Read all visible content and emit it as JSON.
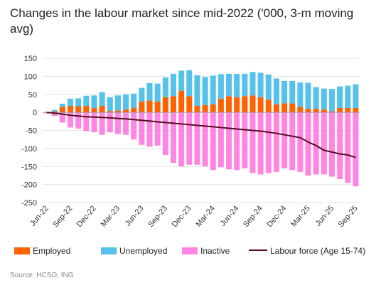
{
  "title": "Changes in the labour market since mid-2022 ('000, 3-m moving avg)",
  "source": "Source: HCSO, ING",
  "chart_data": {
    "type": "bar",
    "stacked": true,
    "ylim": [
      -250,
      150
    ],
    "yticks": [
      150,
      100,
      50,
      0,
      -50,
      -100,
      -150,
      -200,
      -250
    ],
    "categories": [
      "Jun-22",
      "Jul-22",
      "Aug-22",
      "Sep-22",
      "Oct-22",
      "Nov-22",
      "Dec-22",
      "Jan-23",
      "Feb-23",
      "Mar-23",
      "Apr-23",
      "May-23",
      "Jun-23",
      "Jul-23",
      "Aug-23",
      "Sep-23",
      "Oct-23",
      "Nov-23",
      "Dec-23",
      "Jan-24",
      "Feb-24",
      "Mar-24",
      "Apr-24",
      "May-24",
      "Jun-24",
      "Jul-24",
      "Aug-24",
      "Sep-24",
      "Oct-24",
      "Nov-24",
      "Dec-24",
      "Jan-25",
      "Feb-25",
      "Mar-25",
      "Apr-25",
      "May-25",
      "Jun-25",
      "Jul-25",
      "Aug-25",
      "Sep-25"
    ],
    "xtick_labels": [
      "Jun-22",
      "Sep-22",
      "Dec-22",
      "Mar-23",
      "Jun-23",
      "Sep-23",
      "Dec-23",
      "Mar-24",
      "Jun-24",
      "Sep-24",
      "Dec-24",
      "Mar-25",
      "Jun-25",
      "Sep-25"
    ],
    "series": [
      {
        "name": "Employed",
        "color": "#ff6200",
        "values": [
          0,
          3,
          15,
          18,
          17,
          18,
          12,
          18,
          4,
          5,
          8,
          12,
          30,
          33,
          30,
          42,
          45,
          60,
          45,
          18,
          20,
          22,
          38,
          45,
          42,
          45,
          47,
          42,
          35,
          22,
          25,
          25,
          15,
          10,
          10,
          8,
          3,
          12,
          12,
          12
        ]
      },
      {
        "name": "Unemployed",
        "color": "#56c2eb",
        "values": [
          0,
          4,
          9,
          20,
          22,
          28,
          35,
          38,
          38,
          42,
          42,
          40,
          38,
          48,
          50,
          55,
          62,
          56,
          72,
          85,
          78,
          80,
          68,
          62,
          65,
          62,
          65,
          68,
          70,
          72,
          62,
          62,
          68,
          72,
          60,
          58,
          62,
          60,
          62,
          66
        ]
      },
      {
        "name": "Inactive",
        "color": "#ff85e2",
        "values": [
          -3,
          -10,
          -28,
          -42,
          -45,
          -52,
          -55,
          -62,
          -55,
          -60,
          -62,
          -75,
          -90,
          -95,
          -92,
          -118,
          -140,
          -150,
          -145,
          -145,
          -150,
          -160,
          -152,
          -158,
          -160,
          -155,
          -168,
          -172,
          -168,
          -165,
          -155,
          -160,
          -165,
          -175,
          -172,
          -172,
          -178,
          -185,
          -195,
          -205
        ]
      },
      {
        "name": "Labour force (Age 15-74)",
        "type": "line",
        "color": "#5a0a22",
        "values": [
          0,
          -2,
          -5,
          -8,
          -10,
          -12,
          -13,
          -14,
          -15,
          -17,
          -18,
          -20,
          -22,
          -24,
          -26,
          -28,
          -30,
          -32,
          -34,
          -36,
          -38,
          -40,
          -42,
          -44,
          -46,
          -48,
          -50,
          -52,
          -55,
          -58,
          -62,
          -66,
          -70,
          -82,
          -92,
          -105,
          -110,
          -115,
          -118,
          -125
        ]
      }
    ]
  }
}
